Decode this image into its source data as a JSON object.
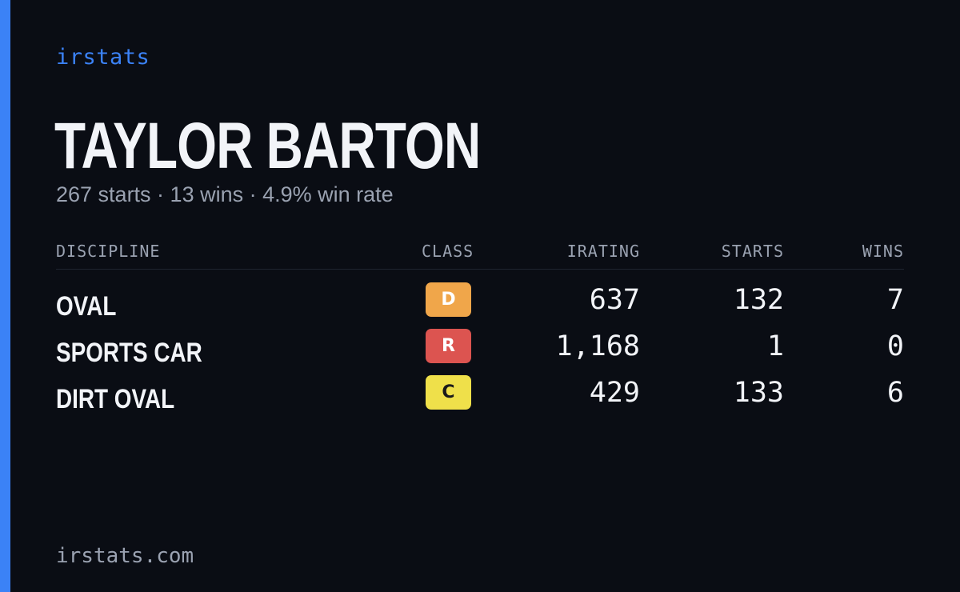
{
  "brand": "irstats",
  "driver": {
    "name": "TAYLOR BARTON",
    "summary": "267 starts · 13 wins · 4.9% win rate"
  },
  "table": {
    "headers": {
      "discipline": "DISCIPLINE",
      "class": "CLASS",
      "irating": "IRATING",
      "starts": "STARTS",
      "wins": "WINS"
    },
    "rows": [
      {
        "discipline": "OVAL",
        "class": "D",
        "class_bg": "#f0a64a",
        "class_fg": "#ffffff",
        "irating": "637",
        "starts": "132",
        "wins": "7"
      },
      {
        "discipline": "SPORTS CAR",
        "class": "R",
        "class_bg": "#dc5450",
        "class_fg": "#ffffff",
        "irating": "1,168",
        "starts": "1",
        "wins": "0"
      },
      {
        "discipline": "DIRT OVAL",
        "class": "C",
        "class_bg": "#efe04a",
        "class_fg": "#1a1a1a",
        "irating": "429",
        "starts": "133",
        "wins": "6"
      }
    ]
  },
  "footer": {
    "url": "irstats.com"
  },
  "colors": {
    "accent": "#3b82f6",
    "background": "#0a0d14",
    "muted": "#9aa2b1"
  }
}
